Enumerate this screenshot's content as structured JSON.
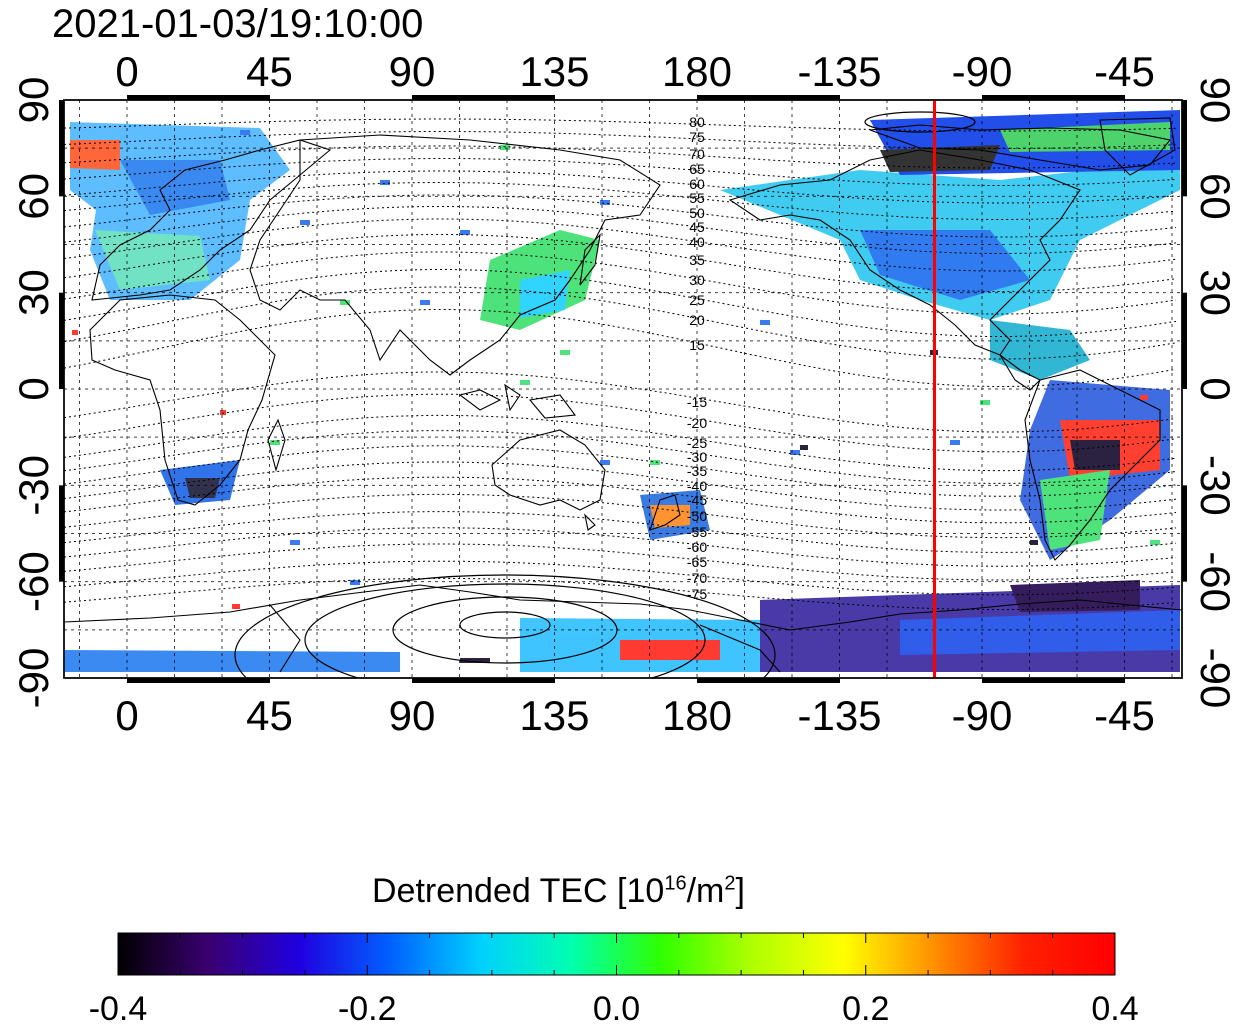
{
  "title": "2021-01-03/19:10:00",
  "map": {
    "top_lon_labels": [
      "0",
      "45",
      "90",
      "135",
      "180",
      "-135",
      "-90",
      "-45"
    ],
    "bottom_lon_labels": [
      "0",
      "45",
      "90",
      "135",
      "180",
      "-135",
      "-90",
      "-45"
    ],
    "left_lat_labels": [
      "90",
      "60",
      "30",
      "0",
      "-30",
      "-60",
      "-90"
    ],
    "right_lat_labels": [
      "90",
      "60",
      "30",
      "0",
      "-30",
      "-60",
      "-90"
    ],
    "north_contour_labels": [
      "80",
      "75",
      "70",
      "65",
      "60",
      "55",
      "50",
      "45",
      "40",
      "35",
      "30",
      "25",
      "20",
      "15"
    ],
    "south_contour_labels": [
      "-15",
      "-20",
      "-25",
      "-30",
      "-35",
      "-40",
      "-45",
      "-50",
      "-55",
      "-60",
      "-65",
      "-70",
      "-75"
    ],
    "terminator_color": "#ff0000",
    "terminator_lon": -105
  },
  "colorbar": {
    "title_prefix": "Detrended TEC  [10",
    "title_exp1": "16",
    "title_mid": "/m",
    "title_exp2": "2",
    "title_suffix": "]",
    "min": -0.4,
    "max": 0.4,
    "tick_labels": [
      "-0.4",
      "-0.2",
      "0.0",
      "0.2",
      "0.4"
    ],
    "colors": [
      "#000000",
      "#3a0070",
      "#2000e0",
      "#0060ff",
      "#00d0ff",
      "#00ffb0",
      "#30ff00",
      "#b0ff00",
      "#ffff00",
      "#ff9000",
      "#ff2000",
      "#ff0000"
    ]
  }
}
